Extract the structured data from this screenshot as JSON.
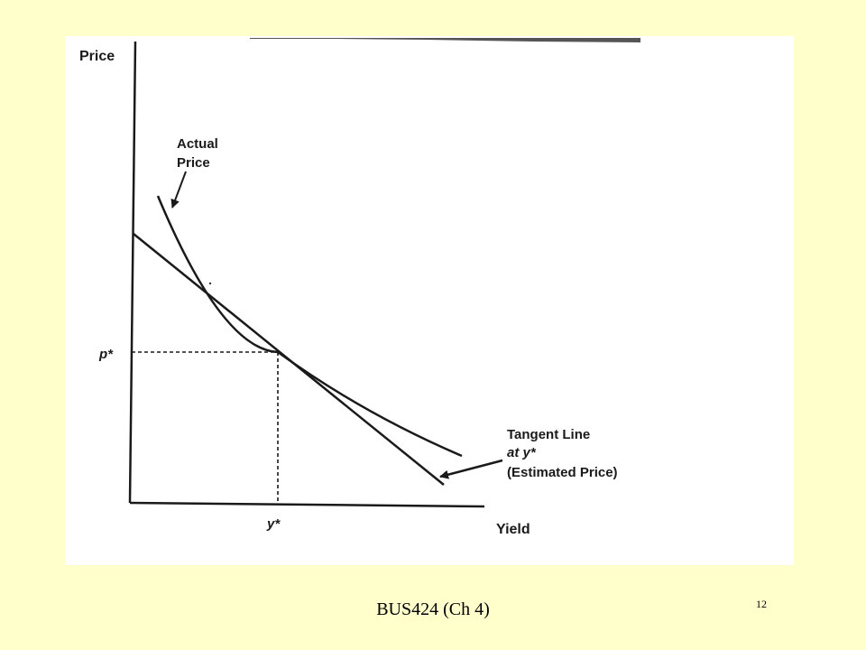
{
  "diagram": {
    "y_axis_label": "Price",
    "x_axis_label": "Yield",
    "p_star_label": "p*",
    "y_star_label": "y*",
    "actual_price_label": [
      "Actual",
      "Price"
    ],
    "tangent_label": [
      "Tangent Line",
      "at y*",
      "(Estimated Price)"
    ]
  },
  "footer": {
    "course_label": "BUS424 (Ch 4)",
    "page_number": "12"
  },
  "colors": {
    "slide_background": "#ffffcc",
    "panel_background": "#ffffff",
    "ink": "#1a1a1a"
  }
}
